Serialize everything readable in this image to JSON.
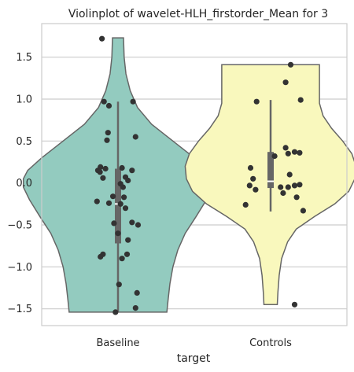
{
  "chart_data": {
    "type": "violin",
    "title": "Violinplot of wavelet-HLH_firstorder_Mean for 3",
    "xlabel": "target",
    "ylabel": "",
    "categories": [
      "Baseline",
      "Controls"
    ],
    "ylim": [
      -1.7,
      1.9
    ],
    "yticks": [
      -1.5,
      -1.0,
      -0.5,
      0.0,
      0.5,
      1.0,
      1.5
    ],
    "ytick_labels": [
      "−1.5",
      "−1.0",
      "−0.5",
      "0.0",
      "0.5",
      "1.0",
      "1.5"
    ],
    "grid": "horizontal",
    "colors": {
      "Baseline": "#93cbbf",
      "Controls": "#f9f8bd",
      "outline": "#666666",
      "points": "#333333",
      "grid": "#cccccc",
      "axes": "#cccccc"
    },
    "violins": [
      {
        "category": "Baseline",
        "min": -1.54,
        "max": 1.73,
        "q1": -0.72,
        "median": -0.25,
        "q3": 0.17,
        "whisker_low": -1.54,
        "whisker_high": 0.97,
        "density": [
          [
            -1.54,
            0.8
          ],
          [
            -1.4,
            0.82
          ],
          [
            -1.2,
            0.85
          ],
          [
            -1.0,
            0.9
          ],
          [
            -0.8,
            0.98
          ],
          [
            -0.6,
            1.1
          ],
          [
            -0.4,
            1.28
          ],
          [
            -0.2,
            1.45
          ],
          [
            -0.05,
            1.55
          ],
          [
            0.05,
            1.55
          ],
          [
            0.15,
            1.48
          ],
          [
            0.3,
            1.25
          ],
          [
            0.5,
            0.9
          ],
          [
            0.7,
            0.55
          ],
          [
            0.9,
            0.32
          ],
          [
            1.1,
            0.2
          ],
          [
            1.3,
            0.13
          ],
          [
            1.5,
            0.1
          ],
          [
            1.73,
            0.09
          ]
        ],
        "points": [
          [
            -0.32,
            1.72
          ],
          [
            -0.28,
            0.97
          ],
          [
            0.3,
            0.97
          ],
          [
            -0.18,
            0.92
          ],
          [
            -0.2,
            0.6
          ],
          [
            0.35,
            0.55
          ],
          [
            -0.22,
            0.51
          ],
          [
            -0.35,
            0.19
          ],
          [
            -0.4,
            0.15
          ],
          [
            -0.25,
            0.17
          ],
          [
            0.08,
            0.18
          ],
          [
            0.28,
            0.15
          ],
          [
            -0.36,
            0.13
          ],
          [
            0.15,
            0.07
          ],
          [
            -0.3,
            0.06
          ],
          [
            0.2,
            0.03
          ],
          [
            0.05,
            -0.01
          ],
          [
            0.1,
            -0.05
          ],
          [
            -0.1,
            -0.16
          ],
          [
            0.12,
            -0.17
          ],
          [
            -0.42,
            -0.22
          ],
          [
            -0.18,
            -0.24
          ],
          [
            0.05,
            -0.25
          ],
          [
            0.15,
            -0.3
          ],
          [
            -0.08,
            -0.48
          ],
          [
            0.28,
            -0.47
          ],
          [
            0.4,
            -0.5
          ],
          [
            -0.3,
            -0.85
          ],
          [
            0.18,
            -0.85
          ],
          [
            -0.35,
            -0.88
          ],
          [
            0.08,
            -0.9
          ],
          [
            0.02,
            -1.21
          ],
          [
            0.38,
            -1.31
          ],
          [
            -0.05,
            -1.54
          ],
          [
            0.35,
            -1.49
          ],
          [
            0.2,
            -0.68
          ],
          [
            0.0,
            -0.6
          ]
        ]
      },
      {
        "category": "Controls",
        "min": -1.45,
        "max": 1.41,
        "q1": -0.06,
        "median": 0.02,
        "q3": 0.37,
        "whisker_low": -0.34,
        "whisker_high": 0.99,
        "density": [
          [
            -1.45,
            0.11
          ],
          [
            -1.3,
            0.12
          ],
          [
            -1.1,
            0.14
          ],
          [
            -0.9,
            0.18
          ],
          [
            -0.7,
            0.28
          ],
          [
            -0.55,
            0.42
          ],
          [
            -0.4,
            0.72
          ],
          [
            -0.25,
            1.05
          ],
          [
            -0.1,
            1.28
          ],
          [
            0.05,
            1.38
          ],
          [
            0.2,
            1.4
          ],
          [
            0.35,
            1.33
          ],
          [
            0.5,
            1.18
          ],
          [
            0.65,
            1.0
          ],
          [
            0.8,
            0.86
          ],
          [
            0.95,
            0.8
          ],
          [
            1.1,
            0.8
          ],
          [
            1.25,
            0.8
          ],
          [
            1.41,
            0.8
          ]
        ],
        "points": [
          [
            0.4,
            1.41
          ],
          [
            0.3,
            1.2
          ],
          [
            -0.28,
            0.97
          ],
          [
            0.6,
            0.99
          ],
          [
            0.3,
            0.42
          ],
          [
            0.48,
            0.37
          ],
          [
            0.35,
            0.35
          ],
          [
            0.58,
            0.36
          ],
          [
            -0.4,
            0.18
          ],
          [
            0.38,
            0.1
          ],
          [
            -0.35,
            0.05
          ],
          [
            0.48,
            -0.03
          ],
          [
            0.58,
            -0.02
          ],
          [
            0.35,
            -0.05
          ],
          [
            -0.42,
            -0.03
          ],
          [
            -0.3,
            -0.08
          ],
          [
            0.25,
            -0.12
          ],
          [
            0.52,
            -0.17
          ],
          [
            -0.5,
            -0.26
          ],
          [
            0.65,
            -0.33
          ],
          [
            0.08,
            0.32
          ],
          [
            0.2,
            -0.05
          ],
          [
            0.48,
            -1.45
          ]
        ]
      }
    ]
  }
}
